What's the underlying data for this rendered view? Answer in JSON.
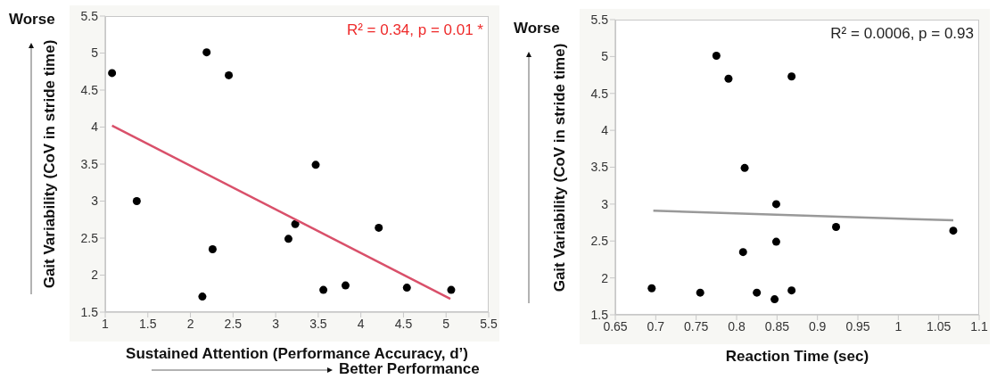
{
  "chart_data": [
    {
      "type": "scatter",
      "xlabel": "Sustained Attention (Performance Accuracy, d’)",
      "ylabel": "Gait Variability (CoV in stride time)",
      "xlim": [
        1,
        5.5
      ],
      "xticks": [
        1,
        1.5,
        2,
        2.5,
        3,
        3.5,
        4,
        4.5,
        5,
        5.5
      ],
      "ylim": [
        1.5,
        5.5
      ],
      "yticks": [
        1.5,
        2,
        2.5,
        3,
        3.5,
        4,
        4.5,
        5,
        5.5
      ],
      "marker": "circle",
      "series": [
        {
          "color": "#000000",
          "x": [
            1.08,
            1.37,
            2.14,
            2.19,
            2.26,
            2.45,
            3.15,
            3.23,
            3.47,
            3.56,
            3.82,
            4.21,
            4.54,
            5.06
          ],
          "values": [
            4.73,
            3.0,
            1.71,
            5.01,
            2.35,
            4.7,
            2.49,
            2.69,
            3.49,
            1.8,
            1.86,
            2.64,
            1.83,
            1.8
          ]
        },
        {
          "type": "line",
          "marker": "none",
          "color": "#d9506a",
          "x": [
            1.08,
            5.05
          ],
          "values": [
            4.02,
            1.68
          ]
        }
      ],
      "annotations": [
        "R² = 0.34, p = 0.01 *",
        "Worse",
        "Better Performance"
      ]
    },
    {
      "type": "scatter",
      "xlabel": "Reaction Time (sec)",
      "ylabel": "Gait Variability (CoV in stride time)",
      "xlim": [
        0.65,
        1.1
      ],
      "xticks": [
        0.65,
        0.7,
        0.75,
        0.8,
        0.85,
        0.9,
        0.95,
        1,
        1.05,
        1.1
      ],
      "ylim": [
        1.5,
        5.5
      ],
      "yticks": [
        1.5,
        2,
        2.5,
        3,
        3.5,
        4,
        4.5,
        5,
        5.5
      ],
      "marker": "circle",
      "series": [
        {
          "color": "#000000",
          "x": [
            0.695,
            0.755,
            0.775,
            0.79,
            0.808,
            0.81,
            0.825,
            0.847,
            0.849,
            0.849,
            0.868,
            0.868,
            0.923,
            1.068
          ],
          "values": [
            1.86,
            1.8,
            5.01,
            4.7,
            2.35,
            3.49,
            1.8,
            1.71,
            3.0,
            2.49,
            4.73,
            1.83,
            2.69,
            2.64
          ]
        },
        {
          "type": "line",
          "marker": "none",
          "color": "#999999",
          "x": [
            0.697,
            1.068
          ],
          "values": [
            2.91,
            2.78
          ]
        }
      ],
      "annotations": [
        "R² = 0.0006, p = 0.93",
        "Worse"
      ]
    }
  ]
}
